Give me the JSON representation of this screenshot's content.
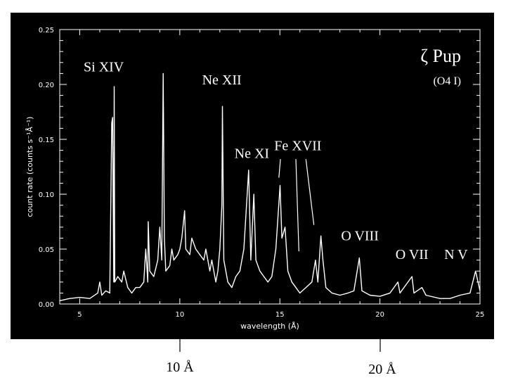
{
  "chart_data": {
    "type": "line",
    "title": "",
    "xlabel": "wavelength (Å)",
    "ylabel": "count rate (counts s⁻¹Å⁻¹)",
    "xlim": [
      4,
      25
    ],
    "ylim": [
      0,
      0.25
    ],
    "x_ticks": [
      "5",
      "10",
      "15",
      "20",
      "25"
    ],
    "y_ticks": [
      "0.00",
      "0.05",
      "0.10",
      "0.15",
      "0.20",
      "0.25"
    ],
    "grid": false,
    "legend": "none",
    "star": {
      "name": "ζ Pup",
      "spectral_type": "(O4 I)"
    },
    "line_labels": [
      {
        "text": "Si XIV",
        "x": 6.2,
        "y": 0.212
      },
      {
        "text": "Ne XII",
        "x": 12.1,
        "y": 0.2
      },
      {
        "text": "Ne XI",
        "x": 13.6,
        "y": 0.133
      },
      {
        "text": "Fe XVII",
        "x": 15.9,
        "y": 0.14
      },
      {
        "text": "O VIII",
        "x": 19.0,
        "y": 0.058
      },
      {
        "text": "O VII",
        "x": 21.6,
        "y": 0.041
      },
      {
        "text": "N V",
        "x": 23.8,
        "y": 0.041
      }
    ],
    "pointer_lines": [
      {
        "from": [
          15.03,
          0.132
        ],
        "to": [
          14.95,
          0.115
        ]
      },
      {
        "from": [
          15.8,
          0.132
        ],
        "to": [
          15.95,
          0.048
        ]
      },
      {
        "from": [
          16.3,
          0.132
        ],
        "to": [
          16.7,
          0.072
        ]
      }
    ],
    "series": [
      {
        "values": [
          [
            4.0,
            0.003
          ],
          [
            4.5,
            0.005
          ],
          [
            5.0,
            0.006
          ],
          [
            5.5,
            0.005
          ],
          [
            5.9,
            0.01
          ],
          [
            6.0,
            0.02
          ],
          [
            6.1,
            0.008
          ],
          [
            6.3,
            0.012
          ],
          [
            6.5,
            0.01
          ],
          [
            6.6,
            0.165
          ],
          [
            6.64,
            0.17
          ],
          [
            6.7,
            0.02
          ],
          [
            6.72,
            0.198
          ],
          [
            6.75,
            0.02
          ],
          [
            6.9,
            0.025
          ],
          [
            7.1,
            0.02
          ],
          [
            7.2,
            0.03
          ],
          [
            7.4,
            0.015
          ],
          [
            7.6,
            0.01
          ],
          [
            7.8,
            0.015
          ],
          [
            8.0,
            0.015
          ],
          [
            8.2,
            0.02
          ],
          [
            8.3,
            0.05
          ],
          [
            8.4,
            0.02
          ],
          [
            8.42,
            0.075
          ],
          [
            8.5,
            0.03
          ],
          [
            8.7,
            0.025
          ],
          [
            8.9,
            0.04
          ],
          [
            9.0,
            0.07
          ],
          [
            9.1,
            0.04
          ],
          [
            9.17,
            0.21
          ],
          [
            9.23,
            0.06
          ],
          [
            9.3,
            0.03
          ],
          [
            9.5,
            0.035
          ],
          [
            9.6,
            0.05
          ],
          [
            9.7,
            0.04
          ],
          [
            9.9,
            0.045
          ],
          [
            10.0,
            0.05
          ],
          [
            10.1,
            0.06
          ],
          [
            10.24,
            0.085
          ],
          [
            10.3,
            0.05
          ],
          [
            10.5,
            0.045
          ],
          [
            10.6,
            0.06
          ],
          [
            10.8,
            0.05
          ],
          [
            11.0,
            0.045
          ],
          [
            11.2,
            0.04
          ],
          [
            11.3,
            0.05
          ],
          [
            11.5,
            0.03
          ],
          [
            11.6,
            0.04
          ],
          [
            11.8,
            0.02
          ],
          [
            11.9,
            0.03
          ],
          [
            12.0,
            0.05
          ],
          [
            12.1,
            0.09
          ],
          [
            12.13,
            0.18
          ],
          [
            12.2,
            0.04
          ],
          [
            12.4,
            0.02
          ],
          [
            12.6,
            0.015
          ],
          [
            12.8,
            0.025
          ],
          [
            13.0,
            0.03
          ],
          [
            13.2,
            0.05
          ],
          [
            13.44,
            0.122
          ],
          [
            13.55,
            0.04
          ],
          [
            13.7,
            0.1
          ],
          [
            13.8,
            0.04
          ],
          [
            14.0,
            0.03
          ],
          [
            14.2,
            0.025
          ],
          [
            14.4,
            0.02
          ],
          [
            14.6,
            0.025
          ],
          [
            14.8,
            0.05
          ],
          [
            15.01,
            0.108
          ],
          [
            15.1,
            0.06
          ],
          [
            15.26,
            0.07
          ],
          [
            15.4,
            0.03
          ],
          [
            15.6,
            0.02
          ],
          [
            15.8,
            0.015
          ],
          [
            16.0,
            0.01
          ],
          [
            16.3,
            0.015
          ],
          [
            16.6,
            0.02
          ],
          [
            16.78,
            0.04
          ],
          [
            16.9,
            0.02
          ],
          [
            17.05,
            0.062
          ],
          [
            17.15,
            0.04
          ],
          [
            17.3,
            0.015
          ],
          [
            17.6,
            0.01
          ],
          [
            18.0,
            0.008
          ],
          [
            18.4,
            0.01
          ],
          [
            18.7,
            0.012
          ],
          [
            18.97,
            0.042
          ],
          [
            19.1,
            0.012
          ],
          [
            19.5,
            0.008
          ],
          [
            20.0,
            0.007
          ],
          [
            20.5,
            0.01
          ],
          [
            20.9,
            0.02
          ],
          [
            21.0,
            0.01
          ],
          [
            21.6,
            0.025
          ],
          [
            21.7,
            0.01
          ],
          [
            22.1,
            0.015
          ],
          [
            22.3,
            0.008
          ],
          [
            23.0,
            0.005
          ],
          [
            23.5,
            0.005
          ],
          [
            24.0,
            0.008
          ],
          [
            24.5,
            0.01
          ],
          [
            24.78,
            0.03
          ],
          [
            25.0,
            0.012
          ]
        ]
      }
    ]
  }
}
